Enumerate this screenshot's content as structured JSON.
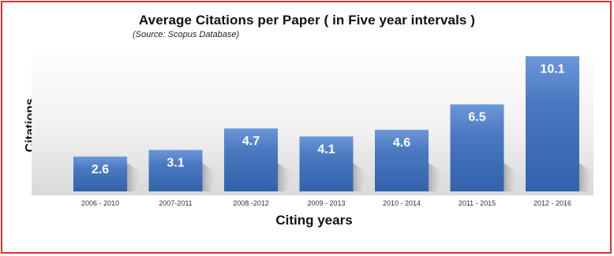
{
  "chart_data": {
    "type": "bar",
    "title": "Average Citations per Paper  ( in Five year intervals )",
    "subtitle": "(Source: Scopus Database)",
    "xlabel": "Citing years",
    "ylabel": "Citations",
    "categories": [
      "2006 - 2010",
      "2007-2011",
      "2008 -2012",
      "2009 - 2013",
      "2010 - 2014",
      "2011 - 2015",
      "2012 - 2016"
    ],
    "values": [
      2.6,
      3.1,
      4.7,
      4.1,
      4.6,
      6.5,
      10.1
    ],
    "data_labels": [
      "2.6",
      "3.1",
      "4.7",
      "4.1",
      "4.6",
      "6.5",
      "10.1"
    ],
    "ylim": [
      0,
      10.5
    ],
    "grid": false,
    "legend": "none",
    "colors": {
      "bar": "#4a79c2",
      "bar_top": "#6c97d8",
      "bar_bottom": "#3262ab",
      "frame": "#e0312a",
      "label": "#ffffff"
    }
  }
}
